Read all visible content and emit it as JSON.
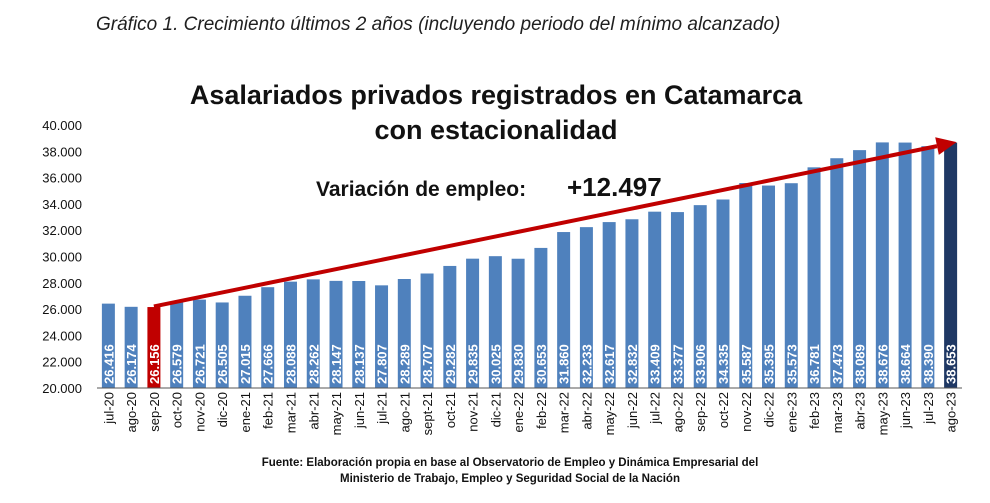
{
  "caption": "Gráfico 1. Crecimiento últimos 2 años (incluyendo periodo del mínimo alcanzado)",
  "colors": {
    "bar": "#4f81bd",
    "highlight_min": "#c00000",
    "highlight_last": "#1f3864",
    "arrow": "#c00000"
  },
  "chart_data": {
    "type": "bar",
    "title_lines": [
      "Asalariados privados registrados en Catamarca",
      "con estacionalidad"
    ],
    "annotation": {
      "label": "Variación de empleo:",
      "value": "+12.497"
    },
    "source_lines": [
      "Fuente: Elaboración propia en base al Observatorio de Empleo y Dinámica Empresarial del",
      "Ministerio de Trabajo, Empleo y Seguridad Social de la Nación"
    ],
    "ylim": [
      20000,
      40000
    ],
    "yticks": [
      "20.000",
      "22.000",
      "24.000",
      "26.000",
      "28.000",
      "30.000",
      "32.000",
      "34.000",
      "36.000",
      "38.000",
      "40.000"
    ],
    "categories": [
      "jul-20",
      "ago-20",
      "sep-20",
      "oct-20",
      "nov-20",
      "dic-20",
      "ene-21",
      "feb-21",
      "mar-21",
      "abr-21",
      "may-21",
      "jun-21",
      "jul-21",
      "ago-21",
      "sept-21",
      "oct-21",
      "nov-21",
      "dic-21",
      "ene-22",
      "feb-22",
      "mar-22",
      "abr-22",
      "may-22",
      "jun-22",
      "jul-22",
      "ago-22",
      "sep-22",
      "oct-22",
      "nov-22",
      "dic-22",
      "ene-23",
      "feb-23",
      "mar-23",
      "abr-23",
      "may-23",
      "jun-23",
      "jul-23",
      "ago-23"
    ],
    "values": [
      26416,
      26174,
      26156,
      26579,
      26721,
      26505,
      27015,
      27666,
      28088,
      28262,
      28147,
      28137,
      27807,
      28289,
      28707,
      29282,
      29835,
      30025,
      29830,
      30653,
      31860,
      32233,
      32617,
      32832,
      33409,
      33377,
      33906,
      34335,
      35587,
      35395,
      35573,
      36781,
      37473,
      38089,
      38676,
      38664,
      38390,
      38653
    ],
    "value_labels": [
      "26.416",
      "26.174",
      "26.156",
      "26.579",
      "26.721",
      "26.505",
      "27.015",
      "27.666",
      "28.088",
      "28.262",
      "28.147",
      "28.137",
      "27.807",
      "28.289",
      "28.707",
      "29.282",
      "29.835",
      "30.025",
      "29.830",
      "30.653",
      "31.860",
      "32.233",
      "32.617",
      "32.832",
      "33.409",
      "33.377",
      "33.906",
      "34.335",
      "35.587",
      "35.395",
      "35.573",
      "36.781",
      "37.473",
      "38.089",
      "38.676",
      "38.664",
      "38.390",
      "38.653"
    ],
    "highlight_min_index": 2,
    "highlight_last_index": 37,
    "trend_arrow": {
      "from_category": "sep-20",
      "from_value": 26200,
      "to_category": "ago-23",
      "to_value": 38700
    }
  }
}
